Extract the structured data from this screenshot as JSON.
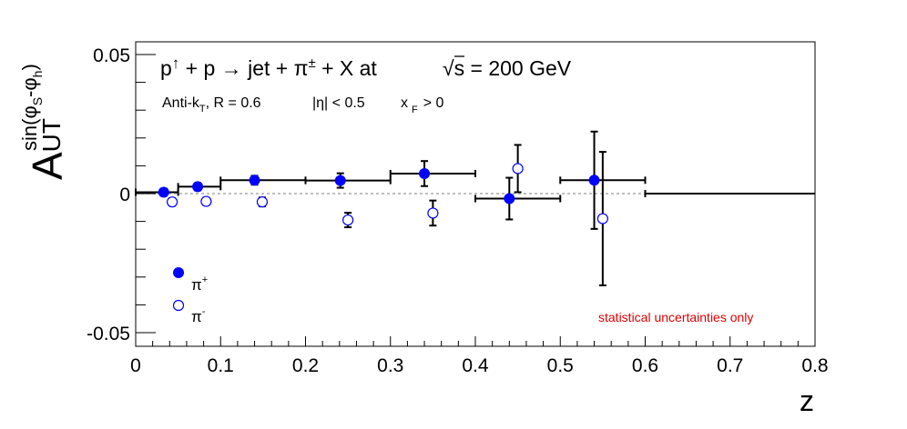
{
  "chart_data": {
    "type": "scatter",
    "title": "p↑ + p → jet + π± + X at √s = 200 GeV",
    "title_parts": {
      "p": "p",
      "arrow_up": "↑",
      "plus_p_arrow": " + p → jet + π",
      "pm": "±",
      "plus_x_at": " + X at",
      "sqrt": "√",
      "s_eq": "s = 200 GeV"
    },
    "subtitle_parts": {
      "antik": "Anti-k",
      "T": "T",
      "R": ", R = 0.6",
      "eta": "|η| < 0.5",
      "x": "x",
      "F": "F",
      "gt": "> 0"
    },
    "ylabel_parts": {
      "A": "A",
      "UT": "UT",
      "sin_open": "sin(φ",
      "S": "S",
      "minus_phi": "-φ",
      "h": "h",
      "close": ")"
    },
    "xlabel": "z",
    "xlim": [
      0,
      0.8
    ],
    "ylim": [
      -0.055,
      0.055
    ],
    "xticks": [
      {
        "v": 0,
        "label": "0"
      },
      {
        "v": 0.1,
        "label": "0.1"
      },
      {
        "v": 0.2,
        "label": "0.2"
      },
      {
        "v": 0.3,
        "label": "0.3"
      },
      {
        "v": 0.4,
        "label": "0.4"
      },
      {
        "v": 0.5,
        "label": "0.5"
      },
      {
        "v": 0.6,
        "label": "0.6"
      },
      {
        "v": 0.7,
        "label": "0.7"
      },
      {
        "v": 0.8,
        "label": "0.8"
      }
    ],
    "yticks": [
      {
        "v": 0.05,
        "label": "0.05"
      },
      {
        "v": 0,
        "label": "0"
      },
      {
        "v": -0.05,
        "label": "-0.05"
      }
    ],
    "series": [
      {
        "name": "π+",
        "legend_base": "π",
        "legend_sup": "+",
        "marker": "filled-circle",
        "color": "#0000ff",
        "points": [
          {
            "x": 0.033,
            "y": 0.0005,
            "xlo": 0.0,
            "xhi": 0.05,
            "yerr": 0.0013
          },
          {
            "x": 0.073,
            "y": 0.0025,
            "xlo": 0.05,
            "xhi": 0.1,
            "yerr": 0.0013
          },
          {
            "x": 0.14,
            "y": 0.0048,
            "xlo": 0.1,
            "xhi": 0.2,
            "yerr": 0.0016
          },
          {
            "x": 0.241,
            "y": 0.0047,
            "xlo": 0.2,
            "xhi": 0.3,
            "yerr": 0.0026
          },
          {
            "x": 0.34,
            "y": 0.0072,
            "xlo": 0.3,
            "xhi": 0.4,
            "yerr": 0.0045
          },
          {
            "x": 0.44,
            "y": -0.0018,
            "xlo": 0.4,
            "xhi": 0.5,
            "yerr": 0.0075
          },
          {
            "x": 0.54,
            "y": 0.0048,
            "xlo": 0.5,
            "xhi": 0.6,
            "yerr": 0.0175
          },
          {
            "x": 0.8,
            "y": 0.0,
            "xlo": 0.6,
            "xhi": 1.0,
            "yerr": 0.0
          }
        ]
      },
      {
        "name": "π-",
        "legend_base": "π",
        "legend_sup": "-",
        "marker": "open-circle",
        "color": "#0000ff",
        "points": [
          {
            "x": 0.043,
            "y": -0.003,
            "yerr": 0.0013
          },
          {
            "x": 0.083,
            "y": -0.0028,
            "yerr": 0.0013
          },
          {
            "x": 0.149,
            "y": -0.003,
            "yerr": 0.0016
          },
          {
            "x": 0.25,
            "y": -0.0095,
            "yerr": 0.0026
          },
          {
            "x": 0.35,
            "y": -0.007,
            "yerr": 0.0045
          },
          {
            "x": 0.45,
            "y": 0.009,
            "yerr": 0.0085
          },
          {
            "x": 0.55,
            "y": -0.009,
            "yerr": 0.024
          }
        ]
      }
    ],
    "zero_line": "dotted gray at y = 0",
    "annotation": "statistical uncertainties only",
    "annotation_color": "#e00000",
    "legend_placement": "lower-left",
    "grid": false
  }
}
